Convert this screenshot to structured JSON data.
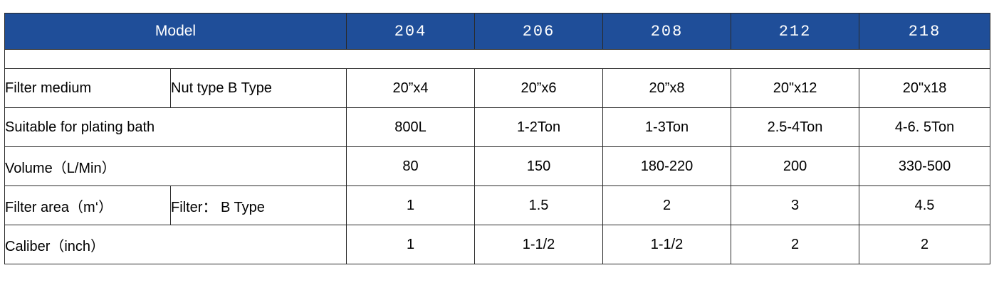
{
  "header": {
    "model_label": "Model",
    "columns": [
      "204",
      "206",
      "208",
      "212",
      "218"
    ]
  },
  "rows": {
    "filter_medium": {
      "label": "Filter medium",
      "sub_label": "Nut type B Type",
      "values": [
        "20”x4",
        "20”x6",
        "20”x8",
        "20\"x12",
        "20\"x18"
      ]
    },
    "plating_bath": {
      "label": "Suitable for plating bath",
      "values": [
        "800L",
        "1-2Ton",
        "1-3Ton",
        "2.5-4Ton",
        "4-6. 5Ton"
      ]
    },
    "volume": {
      "label": "Volume（L/Min）",
      "values": [
        "80",
        "150",
        "180-220",
        "200",
        "330-500"
      ]
    },
    "filter_area": {
      "label": "Filter area（m‘）",
      "sub_label": "Filter：  B Type",
      "values": [
        "1",
        "1.5",
        "2",
        "3",
        "4.5"
      ]
    },
    "caliber": {
      "label": "Caliber（inch）",
      "values": [
        "1",
        "1-1/2",
        "1-1/2",
        "2",
        "2"
      ]
    }
  },
  "colors": {
    "header_bg": "#1f4e99",
    "header_text": "#ffffff",
    "border": "#2a2a2a"
  }
}
